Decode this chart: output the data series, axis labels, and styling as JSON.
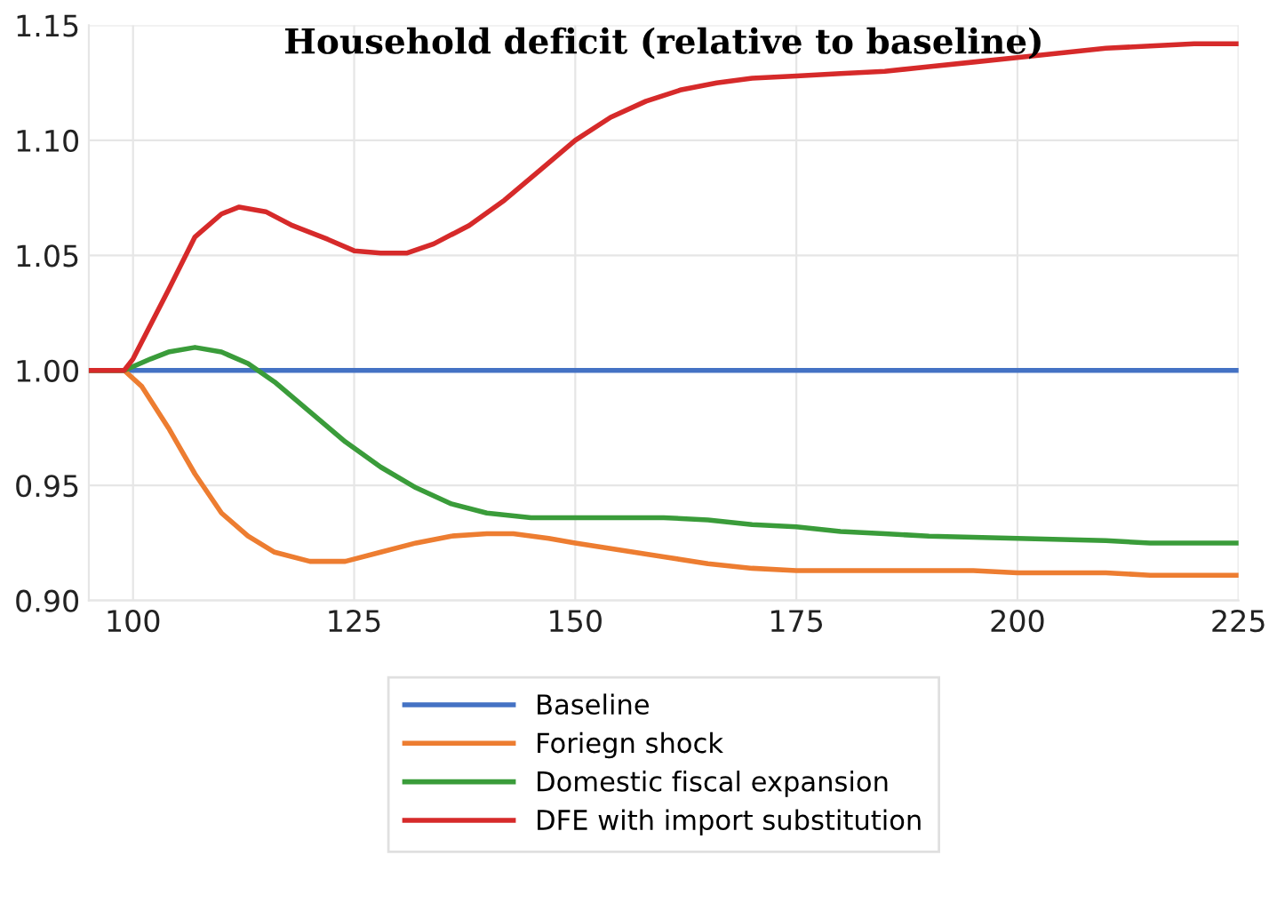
{
  "chart_data": {
    "type": "line",
    "title": "Household deficit (relative to baseline)",
    "xlim": [
      95,
      225
    ],
    "xticks": [
      100,
      125,
      150,
      175,
      200,
      225
    ],
    "ylim": [
      0.9,
      1.15
    ],
    "yticks": [
      {
        "value": 0.9,
        "label": "0.90"
      },
      {
        "value": 0.95,
        "label": "0.95"
      },
      {
        "value": 1.0,
        "label": "1.00"
      },
      {
        "value": 1.05,
        "label": "1.05"
      },
      {
        "value": 1.1,
        "label": "1.10"
      },
      {
        "value": 1.15,
        "label": "1.15"
      }
    ],
    "grid": true,
    "legend": "bottom",
    "marker": "none",
    "line_style": "solid",
    "series": [
      {
        "name": "Baseline",
        "color": "#4472c4",
        "x": [
          95,
          225
        ],
        "values": [
          1.0,
          1.0
        ]
      },
      {
        "name": "Foriegn shock",
        "color": "#ed7d31",
        "x": [
          95,
          99,
          101,
          104,
          107,
          110,
          113,
          116,
          120,
          124,
          128,
          132,
          136,
          140,
          143,
          147,
          150,
          155,
          160,
          165,
          170,
          175,
          185,
          195,
          200,
          210,
          215,
          225
        ],
        "values": [
          1.0,
          1.0,
          0.993,
          0.975,
          0.955,
          0.938,
          0.928,
          0.921,
          0.917,
          0.917,
          0.921,
          0.925,
          0.928,
          0.929,
          0.929,
          0.927,
          0.925,
          0.922,
          0.919,
          0.916,
          0.914,
          0.913,
          0.913,
          0.913,
          0.912,
          0.912,
          0.911,
          0.911
        ]
      },
      {
        "name": "Domestic fiscal expansion",
        "color": "#3a9c3a",
        "x": [
          95,
          99,
          102,
          104,
          107,
          110,
          113,
          116,
          120,
          124,
          128,
          132,
          136,
          140,
          145,
          150,
          155,
          160,
          165,
          170,
          175,
          180,
          185,
          190,
          200,
          210,
          215,
          225
        ],
        "values": [
          1.0,
          1.0,
          1.005,
          1.008,
          1.01,
          1.008,
          1.003,
          0.995,
          0.982,
          0.969,
          0.958,
          0.949,
          0.942,
          0.938,
          0.936,
          0.936,
          0.936,
          0.936,
          0.935,
          0.933,
          0.932,
          0.93,
          0.929,
          0.928,
          0.927,
          0.926,
          0.925,
          0.925
        ]
      },
      {
        "name": "DFE with import substitution",
        "color": "#d62a2a",
        "x": [
          95,
          99,
          100,
          102,
          104,
          107,
          110,
          112,
          115,
          118,
          122,
          125,
          128,
          131,
          134,
          138,
          142,
          146,
          150,
          154,
          158,
          162,
          166,
          170,
          175,
          180,
          185,
          190,
          195,
          200,
          205,
          210,
          215,
          220,
          225
        ],
        "values": [
          1.0,
          1.0,
          1.005,
          1.02,
          1.035,
          1.058,
          1.068,
          1.071,
          1.069,
          1.063,
          1.057,
          1.052,
          1.051,
          1.051,
          1.055,
          1.063,
          1.074,
          1.087,
          1.1,
          1.11,
          1.117,
          1.122,
          1.125,
          1.127,
          1.128,
          1.129,
          1.13,
          1.132,
          1.134,
          1.136,
          1.138,
          1.14,
          1.141,
          1.142,
          1.142
        ]
      }
    ]
  }
}
